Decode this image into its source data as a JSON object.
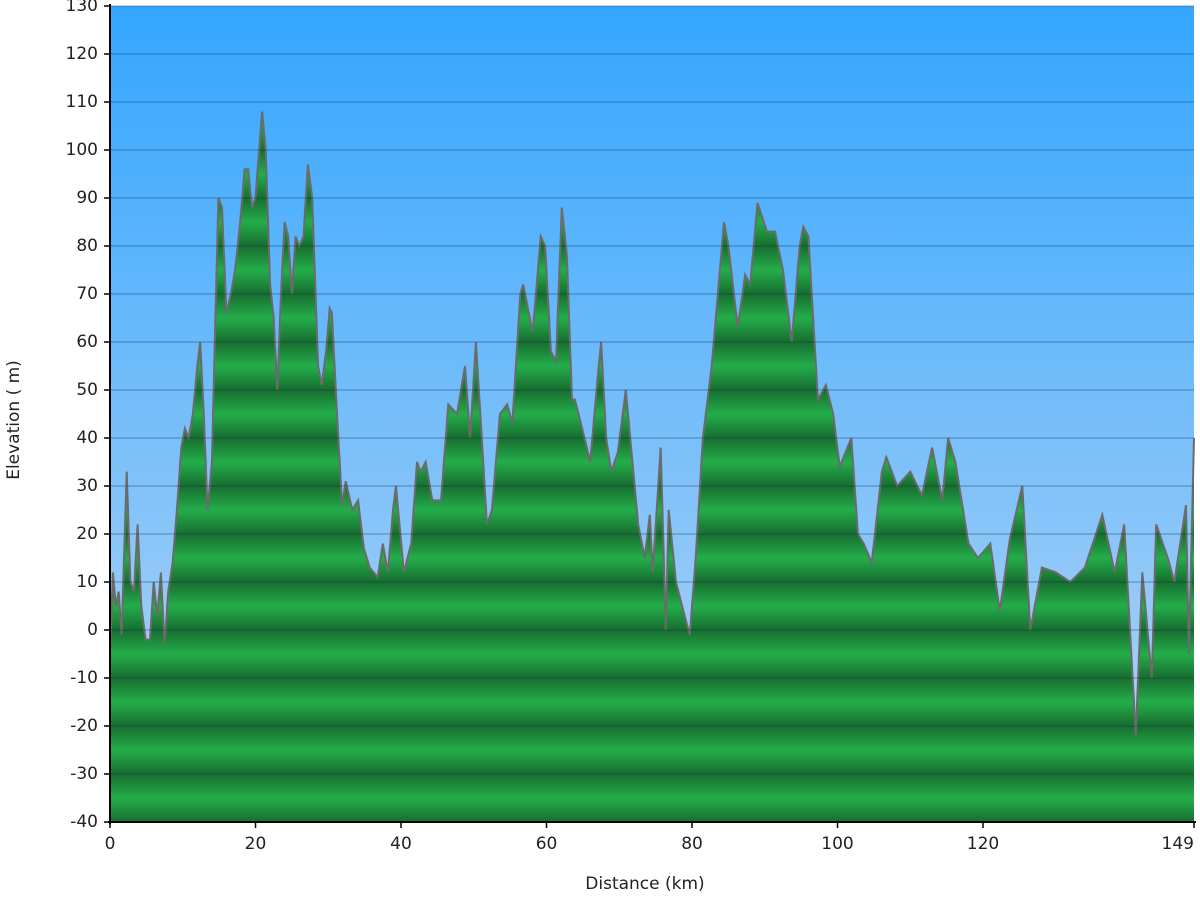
{
  "chart_data": {
    "type": "area",
    "x_label": "Distance   (km)",
    "y_label": "Elevation ( m)",
    "xlim": [
      0,
      149
    ],
    "xticks": [
      0,
      20,
      40,
      60,
      80,
      100,
      120,
      149
    ],
    "ylim": [
      -40,
      130
    ],
    "yticks": [
      -40,
      -30,
      -20,
      -10,
      0,
      10,
      20,
      30,
      40,
      50,
      60,
      70,
      80,
      90,
      100,
      110,
      120,
      130
    ],
    "grid": true,
    "x": [
      0,
      0.4,
      0.8,
      1.2,
      1.6,
      2.3,
      2.8,
      3.3,
      3.8,
      4.3,
      4.9,
      5.5,
      6,
      6.5,
      7,
      7.5,
      8,
      8.6,
      9.2,
      9.8,
      10.3,
      10.8,
      11.4,
      12,
      12.4,
      12.9,
      13.4,
      14,
      14.4,
      14.9,
      15.4,
      16,
      16.6,
      17.2,
      17.9,
      18.5,
      19,
      19.5,
      20,
      20.5,
      20.9,
      21.4,
      22,
      22.5,
      23,
      23.5,
      24,
      24.5,
      25,
      25.5,
      26,
      26.6,
      27.2,
      27.8,
      28.6,
      29.1,
      29.7,
      30.2,
      30.5,
      31.2,
      31.9,
      32.4,
      33.3,
      34.1,
      34.9,
      35.7,
      36.8,
      37.5,
      38.2,
      38.9,
      39.3,
      40.4,
      41.4,
      42.2,
      42.7,
      43.4,
      44.3,
      45.5,
      46.5,
      47.7,
      48.8,
      49.5,
      50.3,
      51.1,
      51.8,
      52.5,
      53.6,
      54.6,
      55.3,
      56.4,
      56.8,
      58.1,
      59.2,
      59.8,
      60.6,
      61.3,
      62.1,
      62.8,
      63.5,
      63.9,
      64.9,
      66,
      67,
      67.5,
      68.2,
      68.9,
      69.8,
      70.9,
      72.6,
      73.5,
      74.2,
      74.6,
      75.7,
      76.4,
      76.8,
      77.8,
      78.8,
      79.7,
      80.5,
      81.5,
      82.7,
      84.4,
      85,
      86.3,
      87.3,
      88,
      89,
      90.3,
      91.4,
      92.5,
      93.7,
      94.8,
      95.3,
      96,
      97.3,
      98.4,
      99.4,
      100.3,
      101.9,
      102.8,
      103.6,
      104.7,
      106.1,
      106.7,
      108.2,
      110,
      111.6,
      113,
      114.4,
      115.2,
      116.2,
      118,
      119.3,
      121,
      122.3,
      123.7,
      125.4,
      126.5,
      128.1,
      130,
      132,
      134,
      136.4,
      138.1,
      139.4,
      141,
      141.9,
      143.2,
      143.8,
      145.4,
      146.3,
      147.9,
      148.3,
      149
    ],
    "series": [
      {
        "color": "#22a84a",
        "values": [
          -5,
          12,
          5,
          8,
          -1,
          33,
          10,
          8,
          22,
          5,
          -2,
          -2,
          10,
          3,
          12,
          -3,
          8,
          14,
          25,
          38,
          42,
          40,
          45,
          55,
          60,
          45,
          25,
          35,
          60,
          90,
          88,
          66,
          70,
          75,
          85,
          96,
          96,
          88,
          90,
          100,
          108,
          100,
          72,
          65,
          50,
          70,
          85,
          82,
          70,
          82,
          80,
          82,
          97,
          90,
          55,
          51,
          58,
          67,
          66,
          45,
          26,
          31,
          25,
          27,
          17,
          13,
          11,
          18,
          12,
          25,
          30,
          12,
          18,
          35,
          33,
          35,
          27,
          27,
          47,
          45,
          55,
          40,
          60,
          40,
          22,
          25,
          45,
          47,
          43,
          70,
          72,
          62,
          82,
          80,
          58,
          56,
          88,
          78,
          48,
          48,
          42,
          35,
          52,
          60,
          40,
          33,
          37,
          50,
          22,
          15,
          24,
          12,
          38,
          0,
          25,
          10,
          4,
          -1,
          15,
          40,
          55,
          85,
          80,
          63,
          74,
          72,
          89,
          83,
          83,
          75,
          60,
          80,
          84,
          82,
          48,
          51,
          45,
          34,
          40,
          20,
          18,
          14,
          33,
          36,
          30,
          33,
          28,
          38,
          27,
          40,
          35,
          18,
          15,
          18,
          4,
          19,
          30,
          0,
          13,
          12,
          10,
          13,
          24,
          12,
          22,
          -22,
          12,
          -10,
          22,
          15,
          10,
          26,
          -5,
          40
        ]
      }
    ]
  }
}
